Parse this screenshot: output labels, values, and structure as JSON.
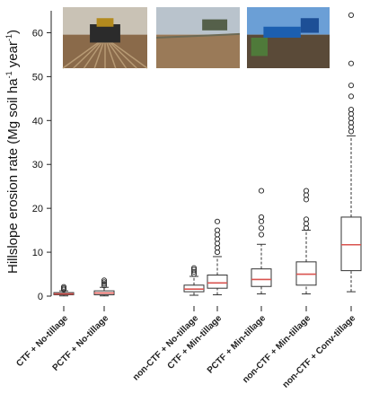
{
  "chart_data": {
    "type": "boxplot",
    "ylabel": "Hillslope erosion rate (Mg soil ha-1 year-1)",
    "ylabel_parts": {
      "main": "Hillslope erosion rate (Mg soil ha",
      "exp1": "-1",
      "mid": " year",
      "exp2": "-1",
      "end": ")"
    },
    "ylim": [
      0,
      65
    ],
    "yticks": [
      0,
      10,
      20,
      30,
      40,
      50,
      60
    ],
    "grid": false,
    "categories": [
      "CTF + No-tillage",
      "PCTF + No-tillage",
      "non-CTF + No-tillage",
      "CTF + Min-tillage",
      "PCTF + Min-tillage",
      "non-CTF + Min-tillage",
      "non-CTF + Conv-tillage"
    ],
    "boxes": [
      {
        "min": 0.05,
        "q1": 0.3,
        "median": 0.5,
        "q3": 0.8,
        "max": 1.2,
        "outliers": [
          1.5,
          1.8,
          2.1
        ]
      },
      {
        "min": 0.05,
        "q1": 0.3,
        "median": 0.7,
        "q3": 1.2,
        "max": 2.0,
        "outliers": [
          2.4,
          2.8,
          3.2,
          3.6
        ]
      },
      {
        "min": 0.2,
        "q1": 1.0,
        "median": 1.6,
        "q3": 2.5,
        "max": 4.5,
        "outliers": [
          5.0,
          5.5,
          6.0,
          6.4
        ]
      },
      {
        "min": 0.3,
        "q1": 1.8,
        "median": 3.0,
        "q3": 4.8,
        "max": 9.0,
        "outliers": [
          10.0,
          11.0,
          12.0,
          13.0,
          14.0,
          15.0,
          17.0
        ]
      },
      {
        "min": 0.5,
        "q1": 2.2,
        "median": 3.8,
        "q3": 6.2,
        "max": 11.8,
        "outliers": [
          14.0,
          15.5,
          17.0,
          18.0,
          24.0
        ]
      },
      {
        "min": 0.5,
        "q1": 2.5,
        "median": 5.0,
        "q3": 7.8,
        "max": 15.0,
        "outliers": [
          15.5,
          16.5,
          17.5,
          22.0,
          23.0,
          24.0
        ]
      },
      {
        "min": 1.0,
        "q1": 5.8,
        "median": 11.7,
        "q3": 18.0,
        "max": 36.5,
        "outliers": [
          37.5,
          38.5,
          39.5,
          40.5,
          41.5,
          42.5,
          45.5,
          48.0,
          53.0,
          64.0
        ]
      }
    ],
    "colors": {
      "median": "#d9534f",
      "box": "#333333",
      "axis": "#222222"
    }
  },
  "photos": [
    {
      "name": "tractor-field-photo",
      "sky": "#c9c2b5",
      "ground": "#8a6a4a"
    },
    {
      "name": "cultivator-field-photo",
      "sky": "#b9c3cc",
      "ground": "#9a7a58"
    },
    {
      "name": "plough-field-photo",
      "sky": "#6b9fd6",
      "ground": "#5a4a38"
    }
  ]
}
